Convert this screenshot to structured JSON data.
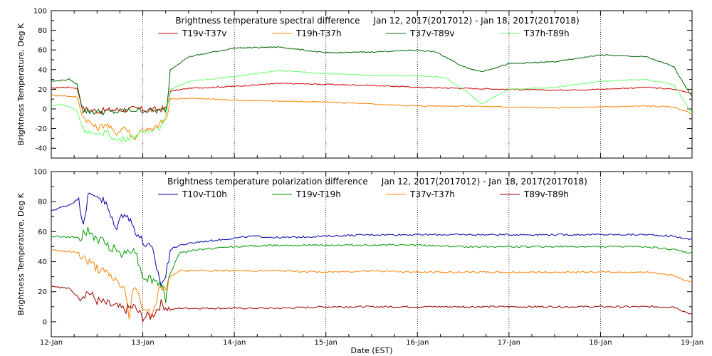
{
  "x_label": "Date (EST)",
  "x_ticks": [
    "12-Jan",
    "13-Jan",
    "14-Jan",
    "15-Jan",
    "16-Jan",
    "17-Jan",
    "18-Jan",
    "19-Jan"
  ],
  "chart_data": [
    {
      "type": "line",
      "title": "Brightness temperature spectral difference     Jan 12, 2017(2017012) - Jan 18, 2017(2017018)",
      "ylabel": "Brightness Temperature, Deg K",
      "xlabel": "Date (EST)",
      "xlim": [
        0,
        7
      ],
      "ylim": [
        -50,
        100
      ],
      "yticks": [
        -40,
        -20,
        0,
        20,
        40,
        60,
        80,
        100
      ],
      "grid": "vertical dotted at day boundaries",
      "legend_position": "top",
      "series": [
        {
          "name": "T19v-T37v",
          "color": "#cc0000",
          "x": [
            0,
            0.1,
            0.2,
            0.28,
            0.35,
            0.5,
            0.7,
            0.9,
            1.1,
            1.2,
            1.26,
            1.3,
            1.5,
            2,
            2.5,
            3,
            3.5,
            4,
            4.5,
            5,
            5.5,
            6,
            6.5,
            6.8,
            7
          ],
          "y": [
            21,
            22,
            22,
            21,
            0,
            -2,
            -1,
            0,
            -1,
            0,
            0,
            18,
            21,
            23,
            26,
            25,
            24,
            22,
            21,
            20,
            19,
            20,
            22,
            20,
            16
          ]
        },
        {
          "name": "T19h-T37h",
          "color": "#ff8000",
          "x": [
            0,
            0.2,
            0.28,
            0.35,
            0.5,
            0.6,
            0.7,
            0.8,
            0.9,
            1,
            1.1,
            1.2,
            1.26,
            1.3,
            1.5,
            2,
            2.5,
            3,
            3.5,
            4,
            4.5,
            5,
            5.5,
            6,
            6.5,
            6.8,
            7
          ],
          "y": [
            14,
            13,
            12,
            -8,
            -20,
            -15,
            -25,
            -18,
            -30,
            -20,
            -22,
            -14,
            -10,
            10,
            11,
            9,
            8,
            7,
            5,
            3,
            3,
            2,
            1,
            2,
            3,
            2,
            -5
          ]
        },
        {
          "name": "T37v-T89v",
          "color": "#006400",
          "x": [
            0,
            0.1,
            0.2,
            0.28,
            0.35,
            0.5,
            0.7,
            0.9,
            1.1,
            1.2,
            1.26,
            1.3,
            1.5,
            2,
            2.5,
            3,
            3.5,
            4,
            4.2,
            4.5,
            4.7,
            5,
            5.5,
            6,
            6.5,
            6.8,
            7
          ],
          "y": [
            28,
            29,
            30,
            25,
            -2,
            -3,
            -3,
            -1,
            -2,
            -2,
            0,
            40,
            53,
            62,
            63,
            57,
            58,
            60,
            58,
            43,
            38,
            46,
            48,
            55,
            53,
            43,
            12
          ]
        },
        {
          "name": "T37h-T89h",
          "color": "#66ff66",
          "x": [
            0,
            0.1,
            0.2,
            0.28,
            0.35,
            0.5,
            0.6,
            0.7,
            0.9,
            1,
            1.1,
            1.2,
            1.26,
            1.3,
            1.5,
            2,
            2.5,
            3,
            3.5,
            4,
            4.3,
            4.5,
            4.7,
            5,
            5.5,
            6,
            6.5,
            6.8,
            7
          ],
          "y": [
            3,
            5,
            2,
            -2,
            -20,
            -28,
            -22,
            -32,
            -28,
            -25,
            -20,
            -18,
            -5,
            20,
            28,
            33,
            39,
            36,
            34,
            34,
            32,
            20,
            5,
            20,
            22,
            28,
            30,
            25,
            -5
          ]
        }
      ]
    },
    {
      "type": "line",
      "title": "Brightness temperature polarization difference     Jan 12, 2017(2017012) - Jan 18, 2017(2017018)",
      "ylabel": "Brightness Temperature, Deg K",
      "xlabel": "Date (EST)",
      "xlim": [
        0,
        7
      ],
      "ylim": [
        -10,
        100
      ],
      "yticks": [
        0,
        20,
        40,
        60,
        80,
        100
      ],
      "grid": "vertical dotted at day boundaries",
      "legend_position": "top",
      "series": [
        {
          "name": "T10v-T10h",
          "color": "#0000aa",
          "x": [
            0,
            0.2,
            0.3,
            0.35,
            0.4,
            0.5,
            0.6,
            0.7,
            0.8,
            0.9,
            1.0,
            1.1,
            1.2,
            1.25,
            1.3,
            1.4,
            1.6,
            1.9,
            2.2,
            2.5,
            3,
            3.5,
            4,
            4.5,
            5,
            5.5,
            6,
            6.5,
            6.8,
            6.95,
            7
          ],
          "y": [
            74,
            78,
            82,
            66,
            83,
            85,
            78,
            62,
            74,
            63,
            53,
            48,
            25,
            30,
            48,
            51,
            53,
            55,
            57,
            56,
            57,
            58,
            58,
            58,
            58,
            58,
            58,
            58,
            57,
            55,
            55
          ]
        },
        {
          "name": "T19v-T19h",
          "color": "#009900",
          "x": [
            0,
            0.3,
            0.4,
            0.5,
            0.6,
            0.7,
            0.8,
            0.9,
            1.0,
            1.1,
            1.2,
            1.25,
            1.3,
            1.4,
            1.6,
            2,
            2.5,
            3,
            3.5,
            4,
            4.5,
            5,
            5.5,
            6,
            6.5,
            6.8,
            6.95,
            7
          ],
          "y": [
            57,
            56,
            60,
            55,
            52,
            48,
            45,
            50,
            30,
            28,
            25,
            15,
            32,
            46,
            48,
            50,
            51,
            51,
            51,
            51,
            50,
            50,
            50,
            50,
            50,
            48,
            46,
            46
          ]
        },
        {
          "name": "T37v-T37h",
          "color": "#ff8000",
          "x": [
            0,
            0.3,
            0.4,
            0.5,
            0.6,
            0.7,
            0.8,
            0.85,
            0.9,
            1.0,
            1.1,
            1.2,
            1.25,
            1.3,
            1.4,
            1.6,
            2,
            2.5,
            3,
            3.5,
            4,
            4.5,
            5,
            5.5,
            6,
            6.5,
            6.8,
            6.95,
            7
          ],
          "y": [
            48,
            46,
            40,
            36,
            32,
            28,
            22,
            2,
            25,
            10,
            5,
            25,
            20,
            30,
            34,
            34,
            34,
            34,
            33,
            34,
            33,
            33,
            33,
            33,
            33,
            33,
            31,
            27,
            27
          ]
        },
        {
          "name": "T89v-T89h",
          "color": "#990000",
          "x": [
            0,
            0.2,
            0.3,
            0.4,
            0.5,
            0.6,
            0.7,
            0.8,
            0.9,
            1.0,
            1.1,
            1.2,
            1.25,
            1.3,
            1.4,
            1.6,
            2,
            2.5,
            3,
            3.5,
            4,
            4.5,
            5,
            5.5,
            6,
            6.5,
            6.8,
            6.95,
            7
          ],
          "y": [
            24,
            22,
            16,
            20,
            14,
            12,
            10,
            8,
            10,
            3,
            4,
            12,
            10,
            8,
            9,
            9,
            9,
            9,
            10,
            10,
            10,
            10,
            10,
            10,
            10,
            10,
            10,
            6,
            5
          ]
        }
      ]
    }
  ]
}
